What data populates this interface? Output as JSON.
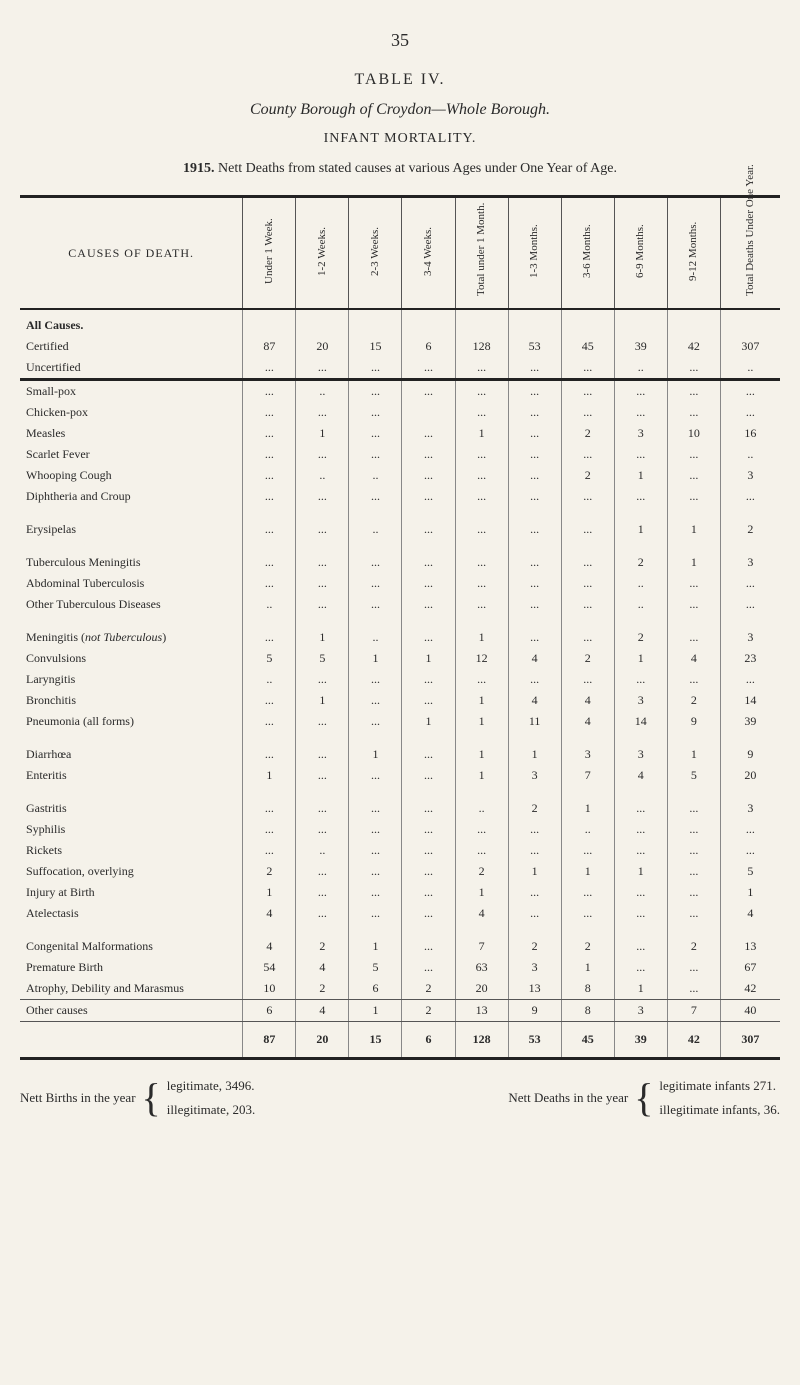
{
  "page_number": "35",
  "table_number": "TABLE IV.",
  "title": "County Borough of Croydon—Whole Borough.",
  "subtitle": "INFANT MORTALITY.",
  "year_line_prefix": "1915.",
  "year_line_text": "Nett Deaths from stated causes at various Ages under One Year of Age.",
  "header_cause": "CAUSES OF DEATH.",
  "columns": [
    "Under 1 Week.",
    "1-2 Weeks.",
    "2-3 Weeks.",
    "3-4 Weeks.",
    "Total under 1 Month.",
    "1-3 Months.",
    "3-6 Months.",
    "6-9 Months.",
    "9-12 Months.",
    "Total Deaths Under One Year."
  ],
  "rows": [
    {
      "label": "All Causes.",
      "section": true,
      "vals": [
        "",
        "",
        "",
        "",
        "",
        "",
        "",
        "",
        "",
        ""
      ]
    },
    {
      "label": "Certified",
      "dots": true,
      "vals": [
        "87",
        "20",
        "15",
        "6",
        "128",
        "53",
        "45",
        "39",
        "42",
        "307"
      ]
    },
    {
      "label": "Uncertified",
      "dots": true,
      "vals": [
        "...",
        "...",
        "...",
        "...",
        "...",
        "...",
        "...",
        "..",
        "...",
        ".."
      ],
      "thick_after": true
    },
    {
      "label": "Small-pox",
      "dots": true,
      "thick_before": true,
      "vals": [
        "...",
        "..",
        "...",
        "...",
        "...",
        "...",
        "...",
        "...",
        "...",
        "..."
      ]
    },
    {
      "label": "Chicken-pox",
      "dots": true,
      "vals": [
        "...",
        "...",
        "...",
        "",
        "...",
        "...",
        "...",
        "...",
        "...",
        "..."
      ]
    },
    {
      "label": "Measles",
      "dots": true,
      "vals": [
        "...",
        "1",
        "...",
        "...",
        "1",
        "...",
        "2",
        "3",
        "10",
        "16"
      ]
    },
    {
      "label": "Scarlet Fever",
      "dots": true,
      "vals": [
        "...",
        "...",
        "...",
        "...",
        "...",
        "...",
        "...",
        "...",
        "...",
        ".."
      ]
    },
    {
      "label": "Whooping Cough",
      "dots": true,
      "vals": [
        "...",
        "..",
        "..",
        "...",
        "...",
        "...",
        "2",
        "1",
        "...",
        "3"
      ]
    },
    {
      "label": "Diphtheria and Croup",
      "dots": true,
      "vals": [
        "...",
        "...",
        "...",
        "...",
        "...",
        "...",
        "...",
        "...",
        "...",
        "..."
      ],
      "gap_after": true
    },
    {
      "label": "Erysipelas",
      "dots": true,
      "vals": [
        "...",
        "...",
        "..",
        "...",
        "...",
        "...",
        "...",
        "1",
        "1",
        "2"
      ],
      "gap_after": true
    },
    {
      "label": "Tuberculous Meningitis",
      "dots": true,
      "vals": [
        "...",
        "...",
        "...",
        "...",
        "...",
        "...",
        "...",
        "2",
        "1",
        "3"
      ]
    },
    {
      "label": "Abdominal Tuberculosis",
      "dots": true,
      "vals": [
        "...",
        "...",
        "...",
        "...",
        "...",
        "...",
        "...",
        "..",
        "...",
        "..."
      ]
    },
    {
      "label": "Other Tuberculous Diseases",
      "dots": true,
      "vals": [
        "..",
        "...",
        "...",
        "...",
        "...",
        "...",
        "...",
        "..",
        "...",
        "..."
      ],
      "gap_after": true
    },
    {
      "label": "Meningitis (not Tuberculous)",
      "italic_sub": true,
      "dots": true,
      "vals": [
        "...",
        "1",
        "..",
        "...",
        "1",
        "...",
        "...",
        "2",
        "...",
        "3"
      ]
    },
    {
      "label": "Convulsions",
      "dots": true,
      "vals": [
        "5",
        "5",
        "1",
        "1",
        "12",
        "4",
        "2",
        "1",
        "4",
        "23"
      ]
    },
    {
      "label": "Laryngitis",
      "dots": true,
      "vals": [
        "..",
        "...",
        "...",
        "...",
        "...",
        "...",
        "...",
        "...",
        "...",
        "..."
      ]
    },
    {
      "label": "Bronchitis",
      "dots": true,
      "vals": [
        "...",
        "1",
        "...",
        "...",
        "1",
        "4",
        "4",
        "3",
        "2",
        "14"
      ]
    },
    {
      "label": "Pneumonia (all forms)",
      "dots": true,
      "vals": [
        "...",
        "...",
        "...",
        "1",
        "1",
        "11",
        "4",
        "14",
        "9",
        "39"
      ],
      "gap_after": true
    },
    {
      "label": "Diarrhœa",
      "dots": true,
      "vals": [
        "...",
        "...",
        "1",
        "...",
        "1",
        "1",
        "3",
        "3",
        "1",
        "9"
      ]
    },
    {
      "label": "Enteritis",
      "dots": true,
      "vals": [
        "1",
        "...",
        "...",
        "...",
        "1",
        "3",
        "7",
        "4",
        "5",
        "20"
      ],
      "gap_after": true
    },
    {
      "label": "Gastritis",
      "dots": true,
      "vals": [
        "...",
        "...",
        "...",
        "...",
        "..",
        "2",
        "1",
        "...",
        "...",
        "3"
      ]
    },
    {
      "label": "Syphilis",
      "dots": true,
      "vals": [
        "...",
        "...",
        "...",
        "...",
        "...",
        "...",
        "..",
        "...",
        "...",
        "..."
      ]
    },
    {
      "label": "Rickets",
      "dots": true,
      "vals": [
        "...",
        "..",
        "...",
        "...",
        "...",
        "...",
        "...",
        "...",
        "...",
        "..."
      ]
    },
    {
      "label": "Suffocation, overlying",
      "dots": true,
      "vals": [
        "2",
        "...",
        "...",
        "...",
        "2",
        "1",
        "1",
        "1",
        "...",
        "5"
      ]
    },
    {
      "label": "Injury at Birth",
      "dots": true,
      "vals": [
        "1",
        "...",
        "...",
        "...",
        "1",
        "...",
        "...",
        "...",
        "...",
        "1"
      ]
    },
    {
      "label": "Atelectasis",
      "dots": true,
      "vals": [
        "4",
        "...",
        "...",
        "...",
        "4",
        "...",
        "...",
        "...",
        "...",
        "4"
      ],
      "gap_after": true
    },
    {
      "label": "Congenital Malformations",
      "dots": true,
      "vals": [
        "4",
        "2",
        "1",
        "...",
        "7",
        "2",
        "2",
        "...",
        "2",
        "13"
      ]
    },
    {
      "label": "Premature Birth",
      "dots": true,
      "vals": [
        "54",
        "4",
        "5",
        "...",
        "63",
        "3",
        "1",
        "...",
        "...",
        "67"
      ]
    },
    {
      "label": "Atrophy, Debility and Marasmus",
      "dots": true,
      "vals": [
        "10",
        "2",
        "6",
        "2",
        "20",
        "13",
        "8",
        "1",
        "...",
        "42"
      ],
      "thin_after": true
    },
    {
      "label": "Other causes",
      "dots": true,
      "vals": [
        "6",
        "4",
        "1",
        "2",
        "13",
        "9",
        "8",
        "3",
        "7",
        "40"
      ],
      "thin_after": true
    }
  ],
  "grand_total": {
    "label": "",
    "vals": [
      "87",
      "20",
      "15",
      "6",
      "128",
      "53",
      "45",
      "39",
      "42",
      "307"
    ]
  },
  "footer": {
    "left_label": "Nett Births in the year",
    "left_items": [
      "legitimate, 3496.",
      "illegitimate, 203."
    ],
    "right_label": "Nett Deaths in the year",
    "right_items": [
      "legitimate infants 271.",
      "illegitimate infants, 36."
    ]
  }
}
